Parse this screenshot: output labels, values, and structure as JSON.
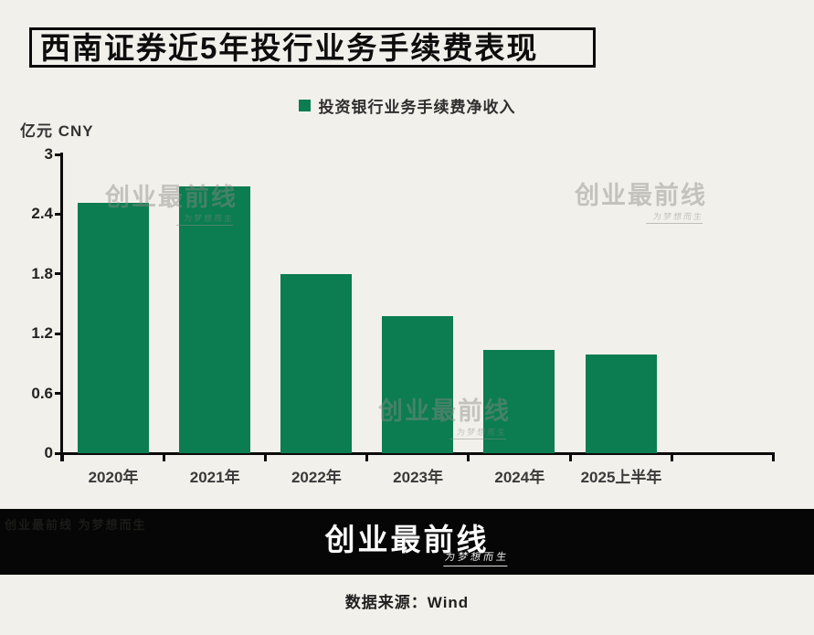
{
  "title": "西南证券近5年投行业务手续费表现",
  "legend": {
    "label": "投资银行业务手续费净收入",
    "swatch_color": "#0b7d50"
  },
  "y_axis_label": "亿元 CNY",
  "chart_data": {
    "type": "bar",
    "categories": [
      "2020年",
      "2021年",
      "2022年",
      "2023年",
      "2024年",
      "2025上半年"
    ],
    "values": [
      2.51,
      2.68,
      1.8,
      1.38,
      1.04,
      0.99
    ],
    "series_name": "投资银行业务手续费净收入",
    "title": "西南证券近5年投行业务手续费表现",
    "xlabel": "",
    "ylabel": "亿元 CNY",
    "ylim": [
      0,
      3
    ],
    "yticks": [
      0,
      0.6,
      1.2,
      1.8,
      2.4,
      3
    ],
    "bar_color": "#0b7d50",
    "grid": false,
    "legend_position": "top-center"
  },
  "watermark": {
    "text": "创业最前线",
    "slogan": "为梦想而生"
  },
  "footer": {
    "logo_text": "创业最前线",
    "logo_slogan": "为梦想而生",
    "ghost_text": "创业最前线 为梦想而生",
    "source": "数据来源：Wind"
  },
  "colors": {
    "background": "#f2f0ea",
    "bar": "#0b7d50",
    "axis": "#0b0b0b",
    "footer_bar": "#060606"
  }
}
